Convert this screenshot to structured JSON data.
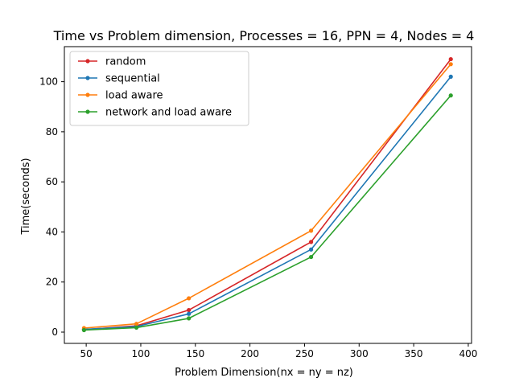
{
  "chart_data": {
    "type": "line",
    "title": "Time vs Problem dimension, Processes = 16, PPN = 4, Nodes = 4",
    "xlabel": "Problem Dimension(nx = ny = nz)",
    "ylabel": "Time(seconds)",
    "xlim": [
      30,
      403
    ],
    "ylim": [
      -4.5,
      114
    ],
    "xticks": [
      50,
      100,
      150,
      200,
      250,
      300,
      350,
      400
    ],
    "yticks": [
      0,
      20,
      40,
      60,
      80,
      100
    ],
    "grid": false,
    "legend_position": "top-left",
    "x": [
      48,
      96,
      144,
      256,
      384
    ],
    "series": [
      {
        "name": "random",
        "color": "#d62728",
        "values": [
          1.0,
          2.5,
          8.8,
          36.0,
          109.0
        ]
      },
      {
        "name": "sequential",
        "color": "#1f77b4",
        "values": [
          1.1,
          2.2,
          7.3,
          33.0,
          102.0
        ]
      },
      {
        "name": "load aware",
        "color": "#ff7f0e",
        "values": [
          1.6,
          3.3,
          13.5,
          40.5,
          107.0
        ]
      },
      {
        "name": "network and load aware",
        "color": "#2ca02c",
        "values": [
          0.8,
          1.8,
          5.5,
          30.0,
          94.5
        ]
      }
    ]
  }
}
